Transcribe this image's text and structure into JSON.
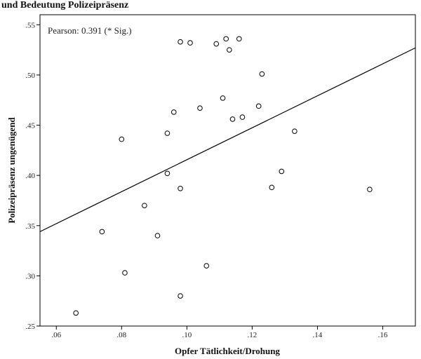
{
  "header_text": "und Bedeutung Polizeipräsenz",
  "chart_data": {
    "type": "scatter",
    "xlabel": "Opfer Tätlichkeit/Drohung",
    "ylabel": "Polizeipräsenz ungenügend",
    "annotation": "Pearson: 0.391 (* Sig.)",
    "xlim": [
      0.055,
      0.17
    ],
    "ylim": [
      0.25,
      0.56
    ],
    "x_ticks": [
      {
        "value": 0.06,
        "label": ".06"
      },
      {
        "value": 0.08,
        "label": ".08"
      },
      {
        "value": 0.1,
        "label": ".10"
      },
      {
        "value": 0.12,
        "label": ".12"
      },
      {
        "value": 0.14,
        "label": ".14"
      },
      {
        "value": 0.16,
        "label": ".16"
      }
    ],
    "y_ticks": [
      {
        "value": 0.25,
        "label": ".25"
      },
      {
        "value": 0.3,
        "label": ".30"
      },
      {
        "value": 0.35,
        "label": ".35"
      },
      {
        "value": 0.4,
        "label": ".40"
      },
      {
        "value": 0.45,
        "label": ".45"
      },
      {
        "value": 0.5,
        "label": ".50"
      },
      {
        "value": 0.55,
        "label": ".55"
      }
    ],
    "grid": false,
    "fit_line": {
      "x": [
        0.055,
        0.17
      ],
      "y": [
        0.344,
        0.527
      ]
    },
    "points": [
      {
        "x": 0.066,
        "y": 0.263
      },
      {
        "x": 0.074,
        "y": 0.344
      },
      {
        "x": 0.08,
        "y": 0.436
      },
      {
        "x": 0.081,
        "y": 0.303
      },
      {
        "x": 0.087,
        "y": 0.37
      },
      {
        "x": 0.091,
        "y": 0.34
      },
      {
        "x": 0.094,
        "y": 0.442
      },
      {
        "x": 0.094,
        "y": 0.402
      },
      {
        "x": 0.096,
        "y": 0.463
      },
      {
        "x": 0.098,
        "y": 0.533
      },
      {
        "x": 0.098,
        "y": 0.387
      },
      {
        "x": 0.098,
        "y": 0.28
      },
      {
        "x": 0.101,
        "y": 0.532
      },
      {
        "x": 0.104,
        "y": 0.467
      },
      {
        "x": 0.106,
        "y": 0.31
      },
      {
        "x": 0.109,
        "y": 0.531
      },
      {
        "x": 0.111,
        "y": 0.477
      },
      {
        "x": 0.112,
        "y": 0.536
      },
      {
        "x": 0.113,
        "y": 0.525
      },
      {
        "x": 0.114,
        "y": 0.456
      },
      {
        "x": 0.116,
        "y": 0.536
      },
      {
        "x": 0.117,
        "y": 0.458
      },
      {
        "x": 0.122,
        "y": 0.469
      },
      {
        "x": 0.123,
        "y": 0.501
      },
      {
        "x": 0.126,
        "y": 0.388
      },
      {
        "x": 0.129,
        "y": 0.404
      },
      {
        "x": 0.133,
        "y": 0.444
      },
      {
        "x": 0.156,
        "y": 0.386
      }
    ]
  }
}
